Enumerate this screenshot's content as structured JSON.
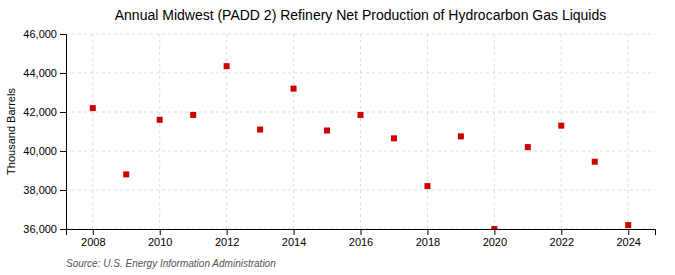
{
  "chart_data": {
    "type": "scatter",
    "title": "Annual Midwest (PADD 2) Refinery Net Production of Hydrocarbon Gas Liquids",
    "ylabel": "Thousand Barrels",
    "annotations": [
      "Source: U.S. Energy Information Administration"
    ],
    "x": [
      2008,
      2009,
      2010,
      2011,
      2012,
      2013,
      2014,
      2015,
      2016,
      2017,
      2018,
      2019,
      2020,
      2021,
      2022,
      2023,
      2024
    ],
    "values": [
      42200,
      38800,
      41600,
      41850,
      44350,
      41100,
      43200,
      41050,
      41850,
      40650,
      38200,
      40750,
      36000,
      40200,
      41300,
      39450,
      36200
    ],
    "color": "#cc0000",
    "marker": "square",
    "xlim": [
      2007.2,
      2024.8
    ],
    "xticks": [
      2008,
      2010,
      2012,
      2014,
      2016,
      2018,
      2020,
      2022,
      2024
    ],
    "ylim": [
      36000,
      46000
    ],
    "yticks": [
      {
        "value": 36000,
        "label": "36,000"
      },
      {
        "value": 38000,
        "label": "38,000"
      },
      {
        "value": 40000,
        "label": "40,000"
      },
      {
        "value": 42000,
        "label": "42,000"
      },
      {
        "value": 44000,
        "label": "44,000"
      },
      {
        "value": 46000,
        "label": "46,000"
      }
    ],
    "grid": true
  }
}
